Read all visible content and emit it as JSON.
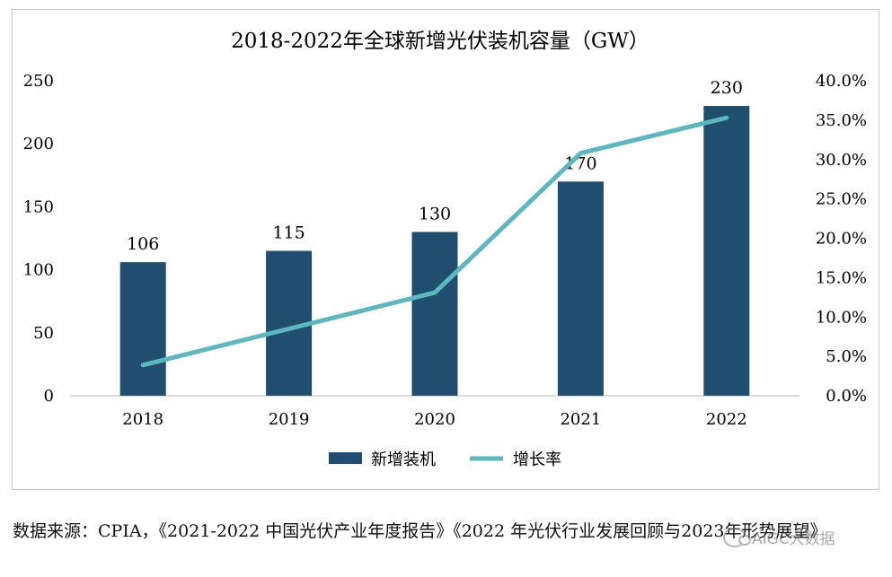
{
  "chart_data": {
    "type": "bar",
    "title": "2018-2022年全球新增光伏装机容量（GW）",
    "categories": [
      "2018",
      "2019",
      "2020",
      "2021",
      "2022"
    ],
    "series": [
      {
        "name": "新增装机",
        "kind": "bar",
        "axis": "left",
        "color": "#1f4e6e",
        "values": [
          106,
          115,
          130,
          170,
          230
        ],
        "data_labels": [
          "106",
          "115",
          "130",
          "170",
          "230"
        ]
      },
      {
        "name": "增长率",
        "kind": "line",
        "axis": "right",
        "color": "#5bb8c1",
        "values": [
          3.9,
          8.5,
          13.1,
          30.8,
          35.3
        ]
      }
    ],
    "y_left": {
      "ylim": [
        0,
        250
      ],
      "ticks": [
        "0",
        "50",
        "100",
        "150",
        "200",
        "250"
      ]
    },
    "y_right": {
      "ylim": [
        0,
        40
      ],
      "ticks": [
        "0.0%",
        "5.0%",
        "10.0%",
        "15.0%",
        "20.0%",
        "25.0%",
        "30.0%",
        "35.0%",
        "40.0%"
      ]
    },
    "grid": false,
    "legend_position": "bottom"
  },
  "source_note": "数据来源：CPIA，《2021-2022 中国光伏产业年度报告》《2022 年光伏行业发展回顾与2023年形势展望》",
  "watermark_text": "AIGC大数据"
}
